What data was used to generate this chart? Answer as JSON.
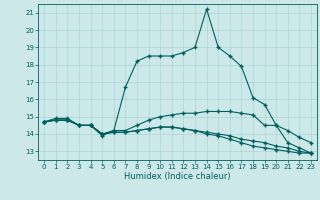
{
  "xlabel": "Humidex (Indice chaleur)",
  "bg_color": "#cce8e8",
  "grid_color": "#aad4d4",
  "line_color": "#005f5f",
  "xlim": [
    -0.5,
    23.5
  ],
  "ylim": [
    12.5,
    21.5
  ],
  "yticks": [
    13,
    14,
    15,
    16,
    17,
    18,
    19,
    20,
    21
  ],
  "xticks": [
    0,
    1,
    2,
    3,
    4,
    5,
    6,
    7,
    8,
    9,
    10,
    11,
    12,
    13,
    14,
    15,
    16,
    17,
    18,
    19,
    20,
    21,
    22,
    23
  ],
  "lines": [
    {
      "x": [
        0,
        1,
        2,
        3,
        4,
        5,
        6,
        7,
        8,
        9,
        10,
        11,
        12,
        13,
        14,
        15,
        16,
        17,
        18,
        19,
        20,
        21,
        22,
        23
      ],
      "y": [
        14.7,
        14.9,
        14.9,
        14.5,
        14.5,
        13.9,
        14.2,
        16.7,
        18.2,
        18.5,
        18.5,
        18.5,
        18.7,
        19.0,
        21.2,
        19.0,
        18.5,
        17.9,
        16.1,
        15.7,
        14.5,
        13.5,
        13.2,
        12.9
      ]
    },
    {
      "x": [
        0,
        1,
        2,
        3,
        4,
        5,
        6,
        7,
        8,
        9,
        10,
        11,
        12,
        13,
        14,
        15,
        16,
        17,
        18,
        19,
        20,
        21,
        22,
        23
      ],
      "y": [
        14.7,
        14.8,
        14.8,
        14.5,
        14.5,
        14.0,
        14.2,
        14.2,
        14.5,
        14.8,
        15.0,
        15.1,
        15.2,
        15.2,
        15.3,
        15.3,
        15.3,
        15.2,
        15.1,
        14.5,
        14.5,
        14.2,
        13.8,
        13.5
      ]
    },
    {
      "x": [
        0,
        1,
        2,
        3,
        4,
        5,
        6,
        7,
        8,
        9,
        10,
        11,
        12,
        13,
        14,
        15,
        16,
        17,
        18,
        19,
        20,
        21,
        22,
        23
      ],
      "y": [
        14.7,
        14.8,
        14.8,
        14.5,
        14.5,
        14.0,
        14.1,
        14.1,
        14.2,
        14.3,
        14.4,
        14.4,
        14.3,
        14.2,
        14.1,
        14.0,
        13.9,
        13.7,
        13.6,
        13.5,
        13.3,
        13.2,
        13.0,
        12.9
      ]
    },
    {
      "x": [
        0,
        1,
        2,
        3,
        4,
        5,
        6,
        7,
        8,
        9,
        10,
        11,
        12,
        13,
        14,
        15,
        16,
        17,
        18,
        19,
        20,
        21,
        22,
        23
      ],
      "y": [
        14.7,
        14.8,
        14.8,
        14.5,
        14.5,
        14.0,
        14.1,
        14.1,
        14.2,
        14.3,
        14.4,
        14.4,
        14.3,
        14.2,
        14.0,
        13.9,
        13.7,
        13.5,
        13.3,
        13.2,
        13.1,
        13.0,
        12.9,
        12.9
      ]
    }
  ]
}
